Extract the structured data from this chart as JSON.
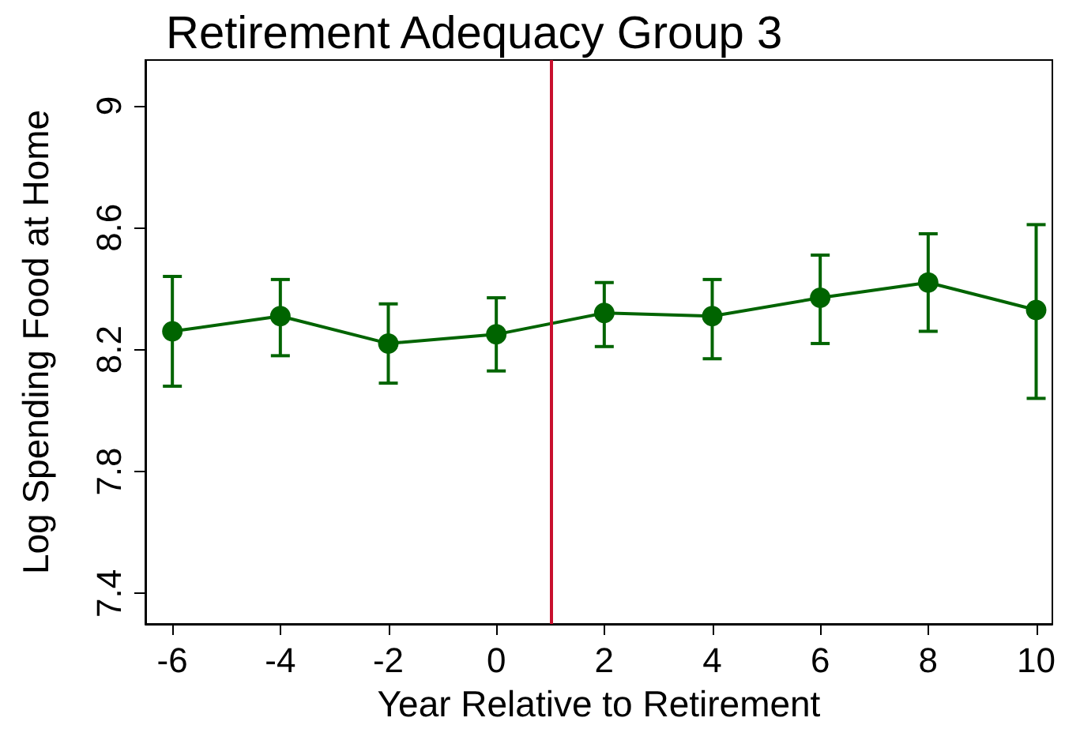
{
  "chart_data": {
    "type": "line",
    "title": "Retirement Adequacy Group 3",
    "xlabel": "Year Relative to Retirement",
    "ylabel": "Log Spending Food at Home",
    "x": [
      -6,
      -4,
      -2,
      0,
      2,
      4,
      6,
      8,
      10
    ],
    "series": [
      {
        "color": "#006400",
        "values": [
          8.26,
          8.31,
          8.22,
          8.25,
          8.32,
          8.31,
          8.37,
          8.42,
          8.33
        ],
        "errors": [
          [
            8.08,
            8.44
          ],
          [
            8.18,
            8.43
          ],
          [
            8.09,
            8.35
          ],
          [
            8.13,
            8.37
          ],
          [
            8.21,
            8.42
          ],
          [
            8.17,
            8.43
          ],
          [
            8.22,
            8.51
          ],
          [
            8.26,
            8.58
          ],
          [
            8.04,
            8.61
          ]
        ]
      }
    ],
    "xlim": [
      -6.5,
      10.3
    ],
    "xticks": [
      -6,
      -4,
      -2,
      0,
      2,
      4,
      6,
      8,
      10
    ],
    "ylim": [
      7.3,
      9.15
    ],
    "yticks": [
      7.4,
      7.8,
      8.2,
      8.6,
      9
    ],
    "ref_lines": [
      {
        "axis": "x",
        "value": 1,
        "color": "#c8102e"
      }
    ],
    "marker": "circle",
    "line_style": "solid",
    "grid": false
  }
}
